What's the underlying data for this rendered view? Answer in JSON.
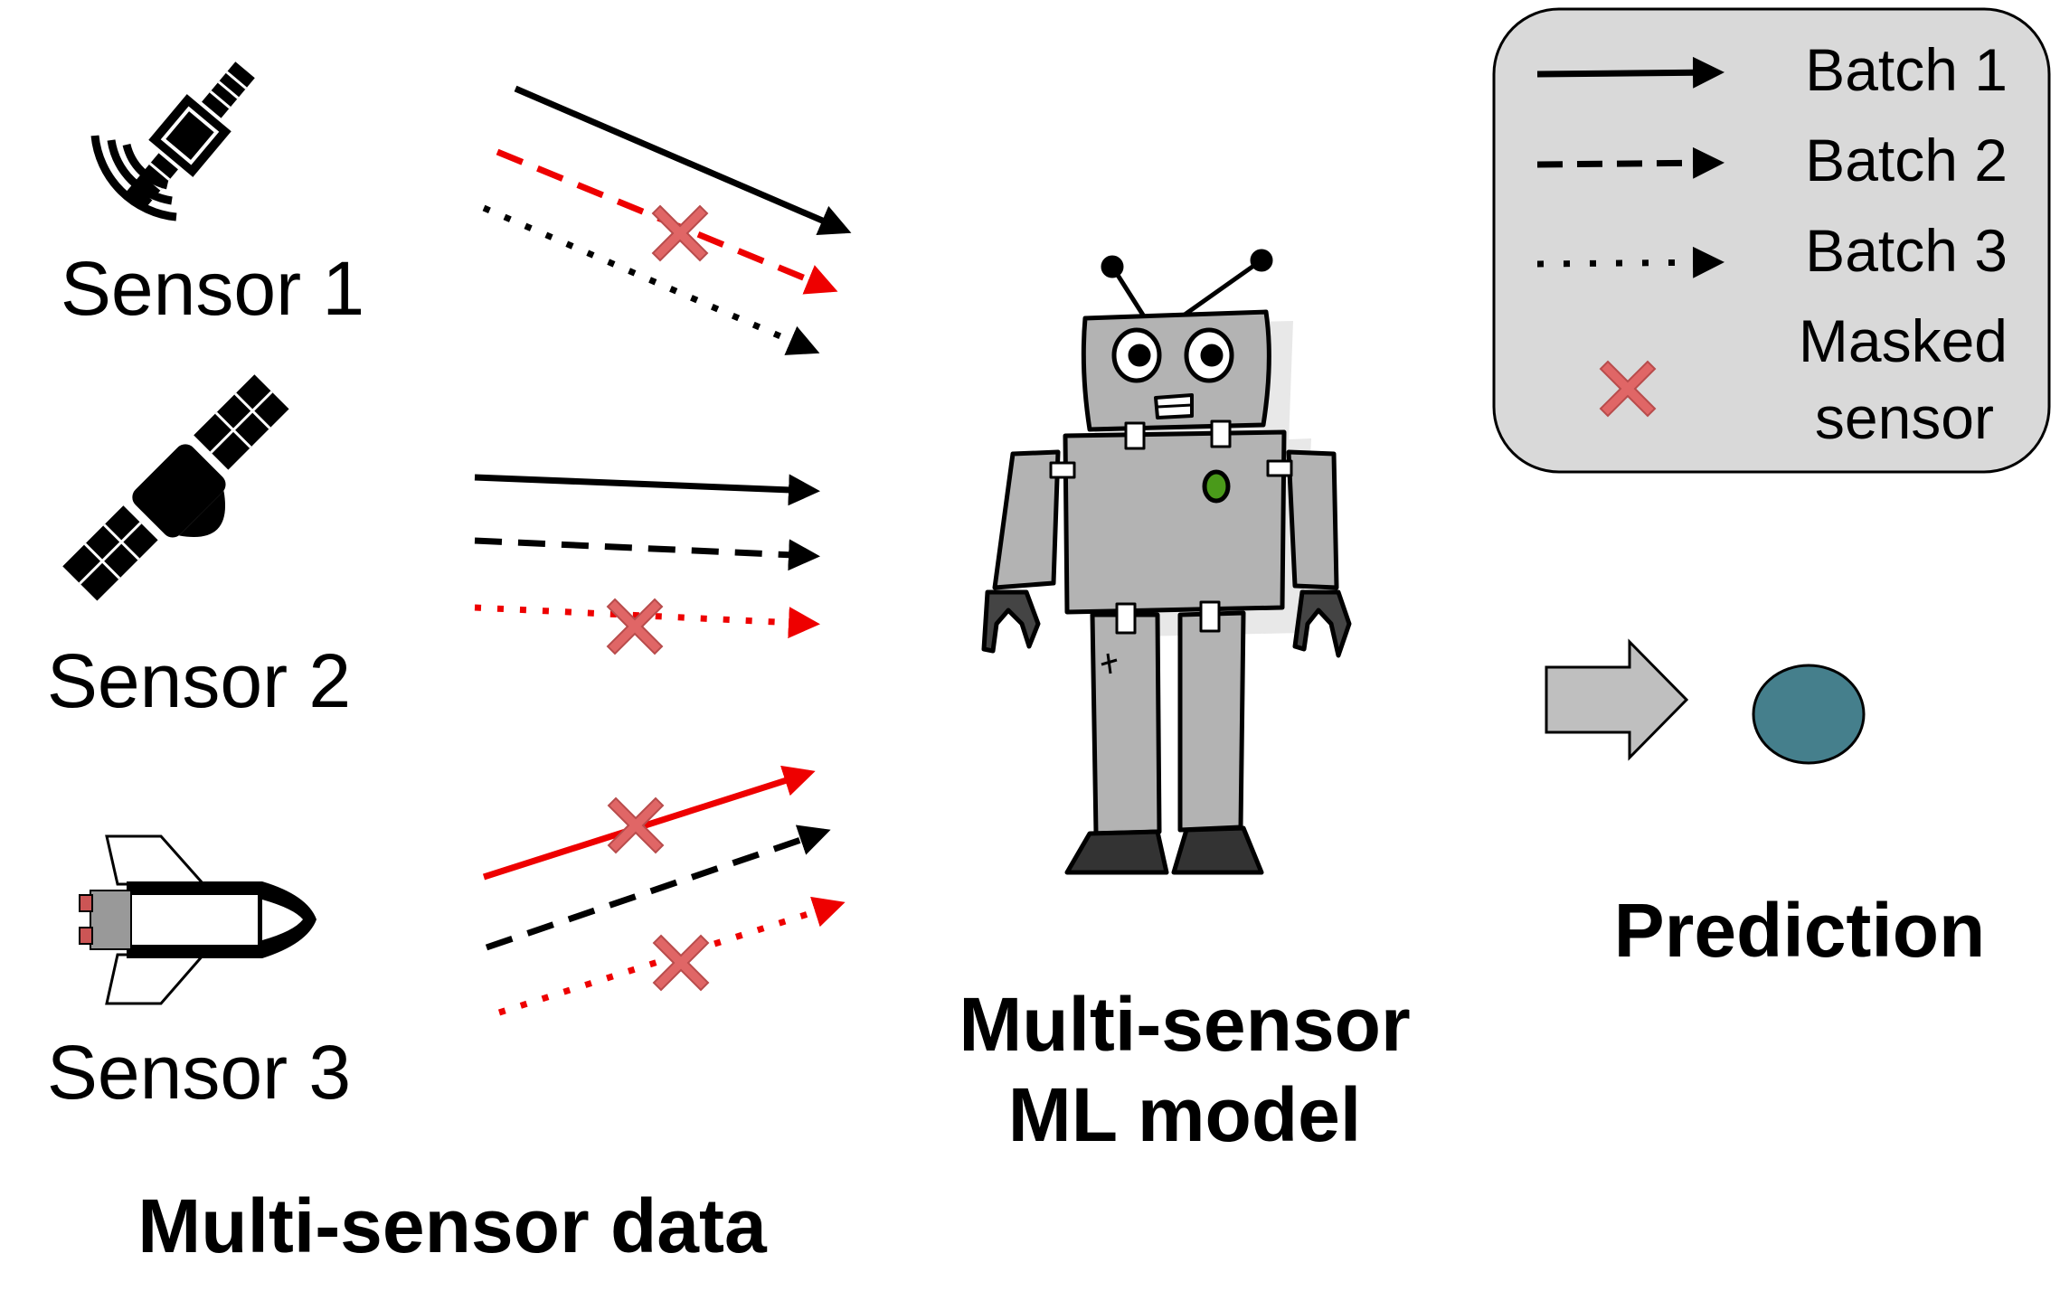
{
  "sensors": [
    {
      "label": "Sensor 1",
      "icon": "satellite-dish-icon"
    },
    {
      "label": "Sensor 2",
      "icon": "satellite-icon"
    },
    {
      "label": "Sensor 3",
      "icon": "space-shuttle-icon"
    }
  ],
  "captions": {
    "data": "Multi-sensor data",
    "model_line1": "Multi-sensor",
    "model_line2": "ML model",
    "prediction": "Prediction"
  },
  "legend": {
    "batch1": "Batch 1",
    "batch2": "Batch 2",
    "batch3": "Batch 3",
    "masked_line1": "Masked",
    "masked_line2": "sensor"
  },
  "colors": {
    "active": "#000000",
    "masked": "#ee0000",
    "cross": "#e06666",
    "legend_bg": "#d9d9d9",
    "robot_body": "#b3b3b3",
    "prediction_dot": "#457f8c",
    "prediction_arrow": "#bfbfbf"
  },
  "batch_flow": [
    {
      "sensor": "Sensor 1",
      "batch": "Batch 1",
      "masked": false
    },
    {
      "sensor": "Sensor 1",
      "batch": "Batch 2",
      "masked": true
    },
    {
      "sensor": "Sensor 1",
      "batch": "Batch 3",
      "masked": false
    },
    {
      "sensor": "Sensor 2",
      "batch": "Batch 1",
      "masked": false
    },
    {
      "sensor": "Sensor 2",
      "batch": "Batch 2",
      "masked": false
    },
    {
      "sensor": "Sensor 2",
      "batch": "Batch 3",
      "masked": true
    },
    {
      "sensor": "Sensor 3",
      "batch": "Batch 1",
      "masked": true
    },
    {
      "sensor": "Sensor 3",
      "batch": "Batch 2",
      "masked": false
    },
    {
      "sensor": "Sensor 3",
      "batch": "Batch 3",
      "masked": true
    }
  ]
}
